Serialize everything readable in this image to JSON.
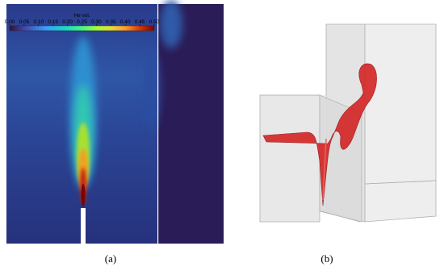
{
  "panels": [
    {
      "caption": "(a)",
      "colorbar": {
        "title": "He vol.",
        "ticks": [
          {
            "value": 0,
            "label": "0.00"
          },
          {
            "value": 0.05,
            "label": "0.05"
          },
          {
            "value": 0.1,
            "label": "0.10"
          },
          {
            "value": 0.15,
            "label": "0.15"
          },
          {
            "value": 0.2,
            "label": "0.20"
          },
          {
            "value": 0.25,
            "label": "0.25"
          },
          {
            "value": 0.3,
            "label": "0.30"
          },
          {
            "value": 0.35,
            "label": "0.35"
          },
          {
            "value": 0.4,
            "label": "0.40"
          },
          {
            "value": 0.45,
            "label": "0.45"
          },
          {
            "value": 0.5,
            "label": "0.50"
          }
        ]
      }
    },
    {
      "caption": "(b)"
    }
  ]
}
